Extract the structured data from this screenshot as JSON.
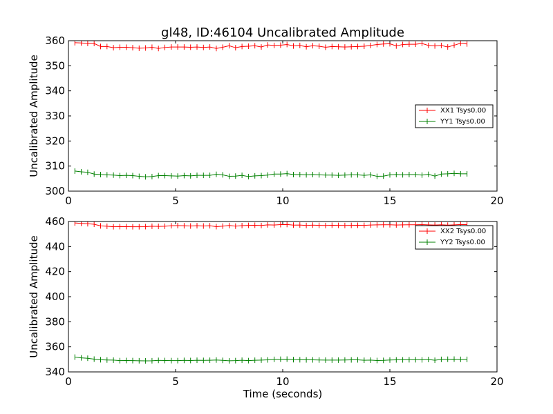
{
  "chart_data": [
    {
      "type": "line",
      "title": "gl48, ID:46104 Uncalibrated Amplitude",
      "xlabel": "",
      "ylabel": "Uncalibrated Amplitude",
      "xlim": [
        0,
        20
      ],
      "ylim": [
        300,
        360
      ],
      "xticks": [
        "0",
        "5",
        "10",
        "15",
        "20"
      ],
      "yticks": [
        "300",
        "310",
        "320",
        "330",
        "340",
        "350",
        "360"
      ],
      "grid": false,
      "legend_position": "center-right",
      "x": [
        0.3,
        0.6,
        0.9,
        1.2,
        1.5,
        1.8,
        2.1,
        2.4,
        2.7,
        3.0,
        3.3,
        3.6,
        3.9,
        4.2,
        4.5,
        4.8,
        5.1,
        5.4,
        5.7,
        6.0,
        6.3,
        6.6,
        6.9,
        7.2,
        7.5,
        7.8,
        8.1,
        8.4,
        8.7,
        9.0,
        9.3,
        9.6,
        9.9,
        10.2,
        10.5,
        10.8,
        11.1,
        11.4,
        11.7,
        12.0,
        12.3,
        12.6,
        12.9,
        13.2,
        13.5,
        13.8,
        14.1,
        14.4,
        14.7,
        15.0,
        15.3,
        15.6,
        15.9,
        16.2,
        16.5,
        16.8,
        17.1,
        17.4,
        17.7,
        18.0,
        18.3,
        18.6
      ],
      "series": [
        {
          "name": "XX1 Tsys0.00",
          "color": "#ff0000",
          "values": [
            359.2,
            359.1,
            358.9,
            358.9,
            357.7,
            357.7,
            357.2,
            357.4,
            357.4,
            357.2,
            357.0,
            357.1,
            357.4,
            356.9,
            357.3,
            357.5,
            357.5,
            357.5,
            357.4,
            357.5,
            357.3,
            357.5,
            356.9,
            357.4,
            358.0,
            357.2,
            357.7,
            357.8,
            358.0,
            357.5,
            358.3,
            358.1,
            358.2,
            358.5,
            357.9,
            358.1,
            357.6,
            358.0,
            357.8,
            357.4,
            357.7,
            357.6,
            357.5,
            357.6,
            357.7,
            357.8,
            358.1,
            358.5,
            358.7,
            358.8,
            357.9,
            358.5,
            358.6,
            358.6,
            358.9,
            358.1,
            357.9,
            358.1,
            357.5,
            358.2,
            359.0,
            358.7
          ]
        },
        {
          "name": "YY1 Tsys0.00",
          "color": "#008000",
          "values": [
            308.0,
            307.7,
            307.5,
            306.8,
            306.6,
            306.5,
            306.4,
            306.2,
            306.3,
            306.2,
            305.9,
            305.7,
            305.8,
            306.2,
            306.2,
            306.1,
            306.0,
            306.2,
            306.1,
            306.3,
            306.3,
            306.3,
            306.7,
            306.5,
            305.9,
            306.0,
            306.3,
            305.8,
            306.1,
            306.2,
            306.4,
            306.8,
            306.8,
            307.0,
            306.6,
            306.6,
            306.5,
            306.6,
            306.5,
            306.4,
            306.4,
            306.3,
            306.4,
            306.5,
            306.5,
            306.3,
            306.5,
            305.9,
            306.0,
            306.5,
            306.6,
            306.5,
            306.6,
            306.6,
            306.4,
            306.7,
            306.0,
            306.8,
            306.9,
            307.1,
            306.9,
            306.9
          ]
        }
      ]
    },
    {
      "type": "line",
      "title": "",
      "xlabel": "Time (seconds)",
      "ylabel": "Uncalibrated Amplitude",
      "xlim": [
        0,
        20
      ],
      "ylim": [
        340,
        460
      ],
      "xticks": [
        "0",
        "5",
        "10",
        "15",
        "20"
      ],
      "yticks": [
        "340",
        "360",
        "380",
        "400",
        "420",
        "440",
        "460"
      ],
      "grid": false,
      "legend_position": "top-right",
      "x": [
        0.3,
        0.6,
        0.9,
        1.2,
        1.5,
        1.8,
        2.1,
        2.4,
        2.7,
        3.0,
        3.3,
        3.6,
        3.9,
        4.2,
        4.5,
        4.8,
        5.1,
        5.4,
        5.7,
        6.0,
        6.3,
        6.6,
        6.9,
        7.2,
        7.5,
        7.8,
        8.1,
        8.4,
        8.7,
        9.0,
        9.3,
        9.6,
        9.9,
        10.2,
        10.5,
        10.8,
        11.1,
        11.4,
        11.7,
        12.0,
        12.3,
        12.6,
        12.9,
        13.2,
        13.5,
        13.8,
        14.1,
        14.4,
        14.7,
        15.0,
        15.3,
        15.6,
        15.9,
        16.2,
        16.5,
        16.8,
        17.1,
        17.4,
        17.7,
        18.0,
        18.3,
        18.6
      ],
      "series": [
        {
          "name": "XX2 Tsys0.00",
          "color": "#ff0000",
          "values": [
            458.8,
            458.5,
            458.2,
            457.8,
            456.5,
            456.2,
            455.8,
            455.9,
            455.9,
            455.8,
            455.8,
            455.9,
            456.2,
            456.1,
            456.2,
            456.6,
            456.7,
            456.6,
            456.4,
            456.6,
            456.4,
            456.6,
            455.9,
            456.3,
            456.8,
            456.3,
            456.7,
            456.9,
            457.0,
            456.8,
            457.3,
            457.2,
            457.5,
            457.6,
            457.1,
            457.2,
            456.8,
            457.1,
            456.9,
            456.8,
            457.0,
            456.9,
            456.8,
            456.9,
            457.0,
            456.9,
            457.2,
            457.3,
            457.4,
            457.4,
            457.2,
            457.3,
            457.4,
            457.4,
            457.5,
            457.3,
            457.2,
            457.4,
            457.1,
            457.3,
            457.6,
            457.5
          ]
        },
        {
          "name": "YY2 Tsys0.00",
          "color": "#008000",
          "values": [
            351.8,
            351.2,
            350.9,
            350.2,
            349.7,
            349.5,
            349.4,
            349.0,
            349.1,
            349.0,
            348.9,
            348.8,
            348.9,
            349.2,
            349.1,
            349.0,
            349.0,
            349.2,
            349.1,
            349.3,
            349.2,
            349.3,
            349.5,
            349.2,
            348.9,
            349.0,
            349.3,
            349.0,
            349.3,
            349.4,
            349.6,
            350.0,
            350.1,
            350.2,
            349.8,
            349.7,
            349.6,
            349.6,
            349.5,
            349.4,
            349.4,
            349.4,
            349.5,
            349.6,
            349.6,
            349.3,
            349.4,
            349.1,
            349.2,
            349.5,
            349.6,
            349.6,
            349.7,
            349.7,
            349.6,
            349.9,
            349.3,
            350.0,
            350.1,
            350.2,
            350.0,
            350.0
          ]
        }
      ]
    }
  ]
}
